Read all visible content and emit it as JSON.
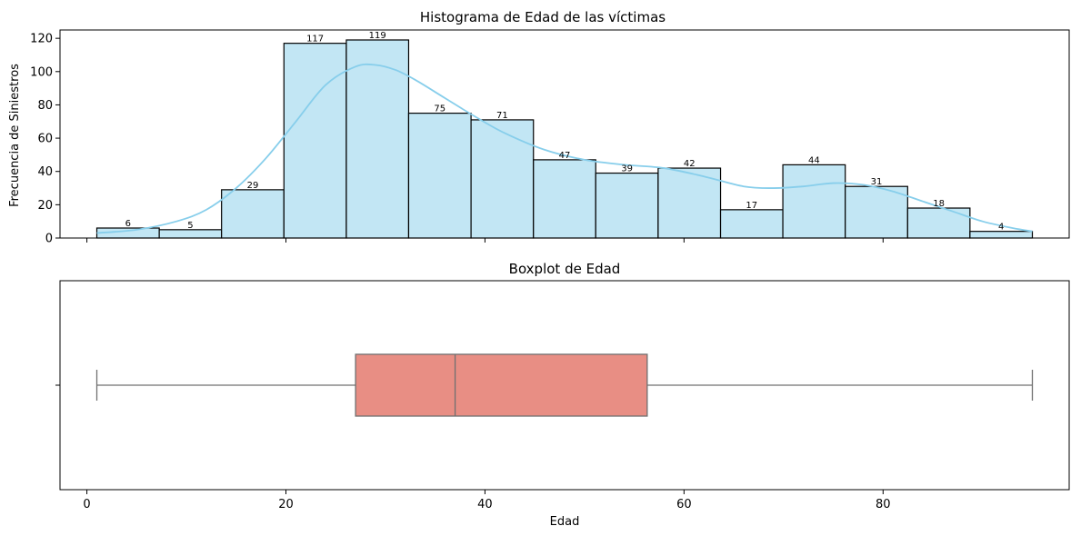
{
  "chart_data": [
    {
      "type": "bar",
      "subtype": "histogram",
      "title": "Histograma de Edad de las víctimas",
      "xlabel": "",
      "ylabel": "Frecuencia de Siniestros",
      "xlim": [
        -2.7,
        98.7
      ],
      "ylim": [
        0,
        125
      ],
      "y_ticks": [
        0,
        20,
        40,
        60,
        80,
        100,
        120
      ],
      "x_ticks": [
        0,
        20,
        40,
        60,
        80
      ],
      "grid": false,
      "colors": {
        "bar_fill": "#c2e6f4",
        "bar_edge": "#000000",
        "kde": "#87ceeb"
      },
      "bins": [
        {
          "x0": 1.0,
          "x1": 7.27,
          "count": 6
        },
        {
          "x0": 7.27,
          "x1": 13.53,
          "count": 5
        },
        {
          "x0": 13.53,
          "x1": 19.8,
          "count": 29
        },
        {
          "x0": 19.8,
          "x1": 26.07,
          "count": 117
        },
        {
          "x0": 26.07,
          "x1": 32.33,
          "count": 119
        },
        {
          "x0": 32.33,
          "x1": 38.6,
          "count": 75
        },
        {
          "x0": 38.6,
          "x1": 44.87,
          "count": 71
        },
        {
          "x0": 44.87,
          "x1": 51.13,
          "count": 47
        },
        {
          "x0": 51.13,
          "x1": 57.4,
          "count": 39
        },
        {
          "x0": 57.4,
          "x1": 63.67,
          "count": 42
        },
        {
          "x0": 63.67,
          "x1": 69.93,
          "count": 17
        },
        {
          "x0": 69.93,
          "x1": 76.2,
          "count": 44
        },
        {
          "x0": 76.2,
          "x1": 82.47,
          "count": 31
        },
        {
          "x0": 82.47,
          "x1": 88.73,
          "count": 18
        },
        {
          "x0": 88.73,
          "x1": 95.0,
          "count": 4
        }
      ],
      "kde": {
        "x": [
          1,
          5,
          9,
          12,
          15,
          18,
          21,
          24,
          27,
          29,
          31,
          33,
          36,
          39,
          42,
          46,
          50,
          54,
          58,
          62,
          66,
          69,
          72,
          75,
          78,
          81,
          84,
          87,
          90,
          93,
          95
        ],
        "y": [
          3,
          5,
          10,
          17,
          30,
          48,
          70,
          92,
          103,
          104,
          101,
          95,
          84,
          73,
          63,
          53,
          47,
          44,
          42,
          37,
          31,
          30,
          31,
          33,
          32,
          28,
          22,
          16,
          10,
          6,
          4
        ]
      }
    },
    {
      "type": "boxplot",
      "title": "Boxplot de Edad",
      "xlabel": "Edad",
      "ylabel": "",
      "xlim": [
        -2.7,
        98.7
      ],
      "x_ticks": [
        0,
        20,
        40,
        60,
        80
      ],
      "grid": false,
      "colors": {
        "box_fill": "#e88e84",
        "line": "#707070"
      },
      "stats": {
        "whisker_low": 1,
        "q1": 27,
        "median": 37,
        "q3": 56.3,
        "whisker_high": 95
      }
    }
  ]
}
